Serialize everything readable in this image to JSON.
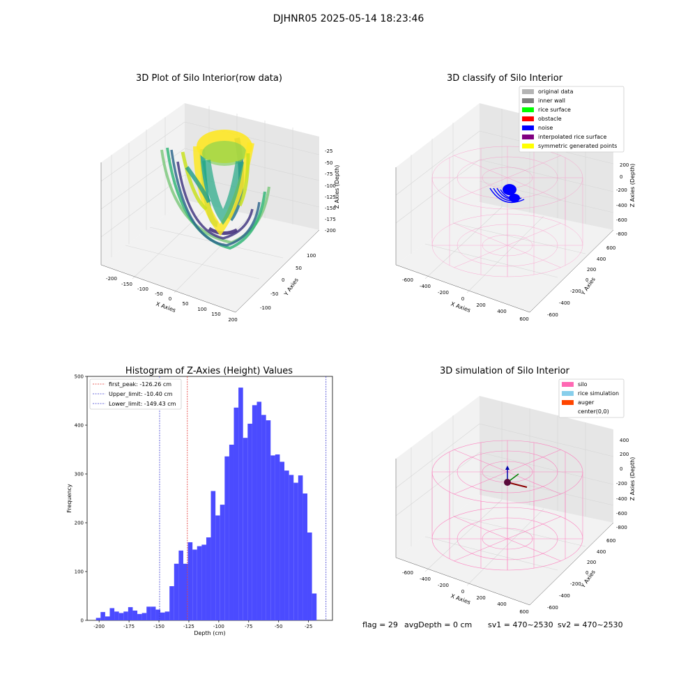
{
  "suptitle": "DJHNR05 2025-05-14 18:23:46",
  "colors": {
    "histogram_bar": "#4b4bff",
    "first_peak": "#e3342f",
    "limits": "#3b3bd1",
    "silo": "#ff69b4",
    "noise": "#0000ff"
  },
  "panels": {
    "raw": {
      "title": "3D Plot of Silo Interior(row data)",
      "xlabel": "X Axies",
      "ylabel": "Y Axies",
      "zlabel": "Z Axies (Depth)",
      "xticks": [
        "-200",
        "-150",
        "-100",
        "-50",
        "0",
        "50",
        "100",
        "150",
        "200"
      ],
      "yticks": [
        "-100",
        "-50",
        "0",
        "50",
        "100"
      ],
      "zticks": [
        "-25",
        "-50",
        "-75",
        "-100",
        "-125",
        "-150",
        "-175",
        "-200"
      ],
      "colormap": "viridis"
    },
    "classify": {
      "title": "3D classify of Silo Interior",
      "xlabel": "X Axies",
      "ylabel": "Y Axies",
      "zlabel": "Z Axies (Depth)",
      "xticks": [
        "-600",
        "-400",
        "-200",
        "0",
        "200",
        "400",
        "600"
      ],
      "yticks": [
        "-600",
        "-400",
        "-200",
        "0",
        "200",
        "400",
        "600"
      ],
      "zticks": [
        "200",
        "0",
        "-200",
        "-400",
        "-600",
        "-800"
      ],
      "legend": [
        {
          "label": "original data",
          "color": "#b4b4b4"
        },
        {
          "label": "inner wall",
          "color": "#808080"
        },
        {
          "label": "rice surface",
          "color": "#00ff00"
        },
        {
          "label": "obstacle",
          "color": "#ff0000"
        },
        {
          "label": "noise",
          "color": "#0000ff"
        },
        {
          "label": "interpolated rice surface",
          "color": "#800080"
        },
        {
          "label": "symmetric generated points",
          "color": "#ffff00"
        }
      ]
    },
    "simulation": {
      "title": "3D simulation of Silo Interior",
      "xlabel": "X Axies",
      "ylabel": "Y Axies",
      "zlabel": "Z Axies (Depth)",
      "xticks": [
        "-600",
        "-400",
        "-200",
        "0",
        "200",
        "400",
        "600"
      ],
      "yticks": [
        "-600",
        "-400",
        "-200",
        "0",
        "200",
        "400",
        "600"
      ],
      "zticks": [
        "400",
        "200",
        "0",
        "-200",
        "-400",
        "-600",
        "-800"
      ],
      "legend": [
        {
          "label": "silo",
          "color": "#ff69b4"
        },
        {
          "label": "rice simulation",
          "color": "#87ceeb"
        },
        {
          "label": "auger",
          "color": "#ff4500"
        },
        {
          "label": "center(0,0)",
          "color": "#ffffff"
        }
      ]
    }
  },
  "status": {
    "flag": "flag = 29",
    "avg_depth": "avgDepth = 0 cm",
    "sv1": "sv1 = 470~2530",
    "sv2": "sv2 = 470~2530"
  },
  "chart_data": [
    {
      "type": "bar",
      "title": "Histogram of Z-Axies (Height) Values",
      "xlabel": "Depth (cm)",
      "ylabel": "Frequency",
      "xlim": [
        -210,
        -5
      ],
      "ylim": [
        0,
        500
      ],
      "xticks": [
        -200,
        -175,
        -150,
        -125,
        -100,
        -75,
        -50,
        -25
      ],
      "yticks": [
        0,
        100,
        200,
        300,
        400,
        500
      ],
      "bin_start": -202.6,
      "bin_width": 3.84,
      "values": [
        5,
        17,
        8,
        25,
        18,
        15,
        18,
        27,
        20,
        13,
        15,
        28,
        28,
        22,
        16,
        18,
        70,
        116,
        143,
        116,
        160,
        145,
        152,
        155,
        170,
        265,
        215,
        237,
        336,
        360,
        436,
        477,
        374,
        403,
        441,
        448,
        421,
        410,
        338,
        340,
        325,
        307,
        298,
        282,
        297,
        260,
        180,
        55
      ],
      "legend_placement": "top-left",
      "lines": [
        {
          "label": "first_peak: -126.26 cm",
          "x": -126.26,
          "color": "#e3342f"
        },
        {
          "label": "Upper_limit: -10.40 cm",
          "x": -10.4,
          "color": "#3b3bd1"
        },
        {
          "label": "Lower_limit: -149.43 cm",
          "x": -149.43,
          "color": "#3b3bd1"
        }
      ]
    }
  ]
}
